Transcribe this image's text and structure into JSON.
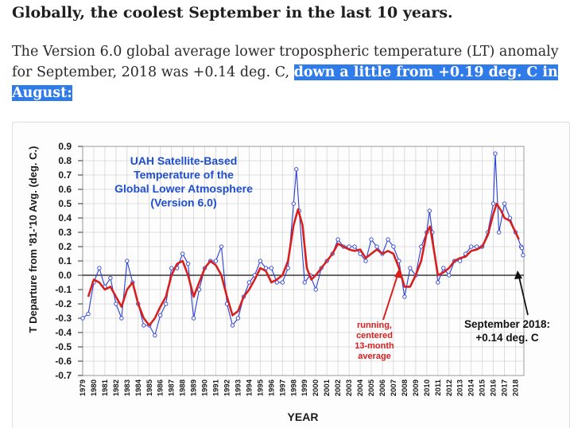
{
  "article": {
    "headline": "Globally, the coolest September in the last 10 years.",
    "para_text": "The Version 6.0 global average lower tropospheric temperature (LT) anomaly for September, 2018 was +0.14 deg. C, ",
    "para_highlight": "down a little from +0.19 deg. C in August:"
  },
  "chart_data": {
    "type": "line",
    "title": [
      "UAH Satellite-Based",
      "Temperature of the",
      "Global Lower Atmosphere",
      "(Version 6.0)"
    ],
    "ylabel": "T Departure from '81-'10 Avg. (deg. C.)",
    "xlabel": "YEAR",
    "ylim": [
      -0.7,
      0.9
    ],
    "xlim": [
      1979,
      2018.75
    ],
    "yticks": [
      "0.9",
      "0.8",
      "0.7",
      "0.6",
      "0.5",
      "0.4",
      "0.3",
      "0.2",
      "0.1",
      "0.0",
      "-0.1",
      "-0.2",
      "-0.3",
      "-0.4",
      "-0.5",
      "-0.6",
      "-0.7"
    ],
    "xticks": [
      "1979",
      "1980",
      "1981",
      "1982",
      "1983",
      "1984",
      "1985",
      "1986",
      "1987",
      "1988",
      "1989",
      "1990",
      "1991",
      "1992",
      "1993",
      "1994",
      "1995",
      "1996",
      "1997",
      "1998",
      "1999",
      "2000",
      "2001",
      "2002",
      "2003",
      "2004",
      "2005",
      "2006",
      "2007",
      "2008",
      "2009",
      "2010",
      "2011",
      "2012",
      "2013",
      "2014",
      "2015",
      "2016",
      "2017",
      "2018"
    ],
    "grid": true,
    "running_label": [
      "running,",
      "centered",
      "13-month",
      "average"
    ],
    "annotation": [
      "September 2018:",
      "+0.14 deg. C"
    ],
    "series": [
      {
        "color": "#2a3fd6",
        "monthly_x": [
          1979.0,
          1979.5,
          1980.0,
          1980.5,
          1981.0,
          1981.5,
          1982.0,
          1982.5,
          1983.0,
          1983.5,
          1984.0,
          1984.5,
          1985.0,
          1985.5,
          1986.0,
          1986.5,
          1987.0,
          1987.5,
          1988.0,
          1988.5,
          1989.0,
          1989.5,
          1990.0,
          1990.5,
          1991.0,
          1991.5,
          1992.0,
          1992.5,
          1993.0,
          1993.5,
          1994.0,
          1994.5,
          1995.0,
          1995.5,
          1996.0,
          1996.5,
          1997.0,
          1997.5,
          1998.0,
          1998.25,
          1998.5,
          1999.0,
          1999.5,
          2000.0,
          2000.5,
          2001.0,
          2001.5,
          2002.0,
          2002.5,
          2003.0,
          2003.5,
          2004.0,
          2004.5,
          2005.0,
          2005.5,
          2006.0,
          2006.5,
          2007.0,
          2007.5,
          2008.0,
          2008.5,
          2009.0,
          2009.5,
          2010.0,
          2010.25,
          2010.5,
          2011.0,
          2011.5,
          2012.0,
          2012.5,
          2013.0,
          2013.5,
          2014.0,
          2014.5,
          2015.0,
          2015.5,
          2016.0,
          2016.17,
          2016.5,
          2017.0,
          2017.5,
          2018.0,
          2018.5,
          2018.58,
          2018.67
        ],
        "monthly_y": [
          -0.3,
          -0.27,
          -0.05,
          0.05,
          -0.08,
          -0.02,
          -0.2,
          -0.3,
          0.1,
          -0.05,
          -0.2,
          -0.35,
          -0.35,
          -0.42,
          -0.28,
          -0.2,
          0.05,
          0.05,
          0.15,
          0.08,
          -0.3,
          -0.1,
          0.05,
          0.1,
          0.1,
          0.2,
          -0.2,
          -0.35,
          -0.3,
          -0.15,
          -0.05,
          0.0,
          0.1,
          0.05,
          0.05,
          -0.05,
          -0.05,
          0.05,
          0.5,
          0.74,
          0.45,
          -0.05,
          0.0,
          -0.1,
          0.05,
          0.1,
          0.15,
          0.25,
          0.2,
          0.2,
          0.2,
          0.15,
          0.1,
          0.25,
          0.2,
          0.15,
          0.25,
          0.2,
          0.1,
          -0.15,
          0.05,
          0.0,
          0.2,
          0.3,
          0.45,
          0.3,
          -0.05,
          0.05,
          0.0,
          0.1,
          0.1,
          0.15,
          0.2,
          0.2,
          0.2,
          0.3,
          0.5,
          0.85,
          0.3,
          0.5,
          0.4,
          0.3,
          0.2,
          0.19,
          0.14
        ]
      },
      {
        "color": "#d62020",
        "running_x": [
          1979.5,
          1980.0,
          1980.5,
          1981.0,
          1981.5,
          1982.0,
          1982.5,
          1983.0,
          1983.5,
          1984.0,
          1984.5,
          1985.0,
          1985.5,
          1986.0,
          1986.5,
          1987.0,
          1987.5,
          1988.0,
          1988.5,
          1989.0,
          1989.5,
          1990.0,
          1990.5,
          1991.0,
          1991.5,
          1992.0,
          1992.5,
          1993.0,
          1993.5,
          1994.0,
          1994.5,
          1995.0,
          1995.5,
          1996.0,
          1996.5,
          1997.0,
          1997.5,
          1998.0,
          1998.4,
          1998.8,
          1999.2,
          1999.6,
          2000.0,
          2000.5,
          2001.0,
          2001.5,
          2002.0,
          2002.5,
          2003.0,
          2003.5,
          2004.0,
          2004.5,
          2005.0,
          2005.5,
          2006.0,
          2006.5,
          2007.0,
          2007.5,
          2008.0,
          2008.5,
          2009.0,
          2009.5,
          2010.0,
          2010.3,
          2010.7,
          2011.0,
          2011.5,
          2012.0,
          2012.5,
          2013.0,
          2013.5,
          2014.0,
          2014.5,
          2015.0,
          2015.5,
          2016.0,
          2016.3,
          2016.7,
          2017.0,
          2017.5,
          2018.0,
          2018.3
        ],
        "running_y": [
          -0.15,
          -0.03,
          -0.05,
          -0.1,
          -0.08,
          -0.15,
          -0.22,
          -0.1,
          -0.05,
          -0.2,
          -0.3,
          -0.35,
          -0.3,
          -0.22,
          -0.15,
          0.0,
          0.08,
          0.1,
          0.0,
          -0.15,
          -0.05,
          0.05,
          0.1,
          0.07,
          0.0,
          -0.15,
          -0.28,
          -0.25,
          -0.15,
          -0.1,
          -0.03,
          0.05,
          0.03,
          -0.05,
          -0.03,
          0.0,
          0.1,
          0.35,
          0.46,
          0.35,
          0.05,
          -0.03,
          0.0,
          0.05,
          0.1,
          0.15,
          0.22,
          0.2,
          0.18,
          0.17,
          0.18,
          0.12,
          0.15,
          0.18,
          0.15,
          0.17,
          0.15,
          0.05,
          -0.08,
          -0.08,
          0.0,
          0.1,
          0.3,
          0.34,
          0.15,
          0.0,
          0.02,
          0.05,
          0.1,
          0.12,
          0.13,
          0.17,
          0.18,
          0.2,
          0.28,
          0.43,
          0.5,
          0.45,
          0.4,
          0.38,
          0.3,
          0.25
        ]
      }
    ]
  }
}
